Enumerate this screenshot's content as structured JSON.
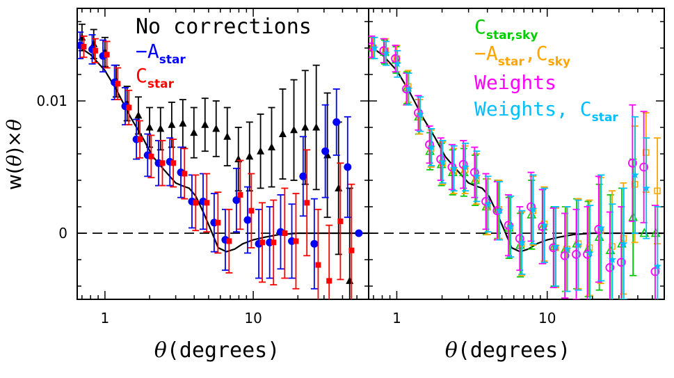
{
  "figure": {
    "ylabel_prefix": "w(",
    "ylabel_theta": "θ",
    "ylabel_mid": ")×",
    "ylabel_theta2": "θ",
    "xlabel_theta": "θ",
    "xlabel_rest": "(degrees)"
  },
  "colors": {
    "black": "#000000",
    "blue": "#0000ff",
    "red": "#ff0000",
    "green": "#00cc00",
    "orange": "#ffa500",
    "magenta": "#ff00ff",
    "cyan": "#00bfff"
  },
  "chart_data": [
    {
      "type": "scatter",
      "panel": "left",
      "xscale": "log",
      "xlim": [
        0.65,
        60
      ],
      "ylim": [
        -0.005,
        0.017
      ],
      "xticks": [
        1,
        10
      ],
      "xtick_labels": [
        "1",
        "10"
      ],
      "yticks": [
        0,
        0.01
      ],
      "ytick_labels": [
        "0",
        "0.01"
      ],
      "hline": 0,
      "legend": [
        {
          "text": "No corrections",
          "color": "#000000"
        },
        {
          "text": "−A",
          "sub": "star",
          "color": "#0000ff"
        },
        {
          "text": "C",
          "sub": "star",
          "color": "#ff0000"
        }
      ],
      "model": {
        "x": [
          0.65,
          0.8,
          1.0,
          1.2,
          1.5,
          1.8,
          2.1,
          2.5,
          3.0,
          3.3,
          3.7,
          4.1,
          4.6,
          5.2,
          5.8,
          6.6,
          7.5,
          8.5,
          10,
          12,
          15,
          20,
          30,
          45,
          60
        ],
        "y": [
          0.0142,
          0.0135,
          0.0123,
          0.0108,
          0.0087,
          0.0072,
          0.0058,
          0.0048,
          0.0038,
          0.0036,
          0.0034,
          0.0028,
          0.0016,
          0.0002,
          -0.0011,
          -0.0014,
          -0.0012,
          -0.0008,
          -0.0005,
          -0.0003,
          -0.0001,
          0.0,
          0.0,
          0.0,
          0.0
        ]
      },
      "series": [
        {
          "marker": "triangle",
          "color": "#000000",
          "x": [
            0.7,
            0.84,
            1.0,
            1.19,
            1.41,
            1.68,
            2.0,
            2.37,
            2.82,
            3.35,
            3.98,
            4.73,
            5.62,
            6.68,
            7.94,
            9.44,
            11.2,
            13.3,
            15.8,
            18.8,
            22.4,
            26.6,
            31.6,
            37.6,
            44.7
          ],
          "y": [
            0.0148,
            0.0143,
            0.0137,
            0.0115,
            0.0098,
            0.0089,
            0.008,
            0.0079,
            0.0082,
            0.0083,
            0.0076,
            0.0082,
            0.0079,
            0.0073,
            0.0056,
            0.0058,
            0.0062,
            0.0065,
            0.0075,
            0.0078,
            0.008,
            0.008,
            0.0059,
            0.0034,
            -0.0036
          ],
          "err": [
            0.001,
            0.0011,
            0.0011,
            0.0012,
            0.0013,
            0.0014,
            0.0015,
            0.0016,
            0.0017,
            0.0018,
            0.0019,
            0.002,
            0.0021,
            0.0022,
            0.0024,
            0.0026,
            0.0028,
            0.003,
            0.0034,
            0.0038,
            0.0043,
            0.0047,
            0.0047,
            0.005,
            0.007
          ]
        },
        {
          "marker": "circle",
          "color": "#0000ff",
          "x": [
            0.68,
            0.82,
            0.97,
            1.16,
            1.37,
            1.63,
            1.94,
            2.3,
            2.74,
            3.25,
            3.86,
            4.59,
            5.45,
            6.48,
            7.7,
            9.16,
            10.9,
            12.9,
            15.3,
            18.2,
            21.7,
            25.8,
            30.6,
            36.4,
            43.3,
            51.5
          ],
          "y": [
            0.0142,
            0.0139,
            0.0134,
            0.0114,
            0.0096,
            0.0071,
            0.0059,
            0.0053,
            0.0054,
            0.0046,
            0.0024,
            0.0024,
            0.0008,
            -0.0005,
            0.0025,
            0.001,
            -0.0008,
            -0.0007,
            0.0001,
            -0.0006,
            0.0043,
            -0.0008,
            0.0062,
            0.0084,
            0.005,
            0.0
          ],
          "err": [
            0.001,
            0.0011,
            0.0012,
            0.0013,
            0.0014,
            0.0015,
            0.0016,
            0.0017,
            0.0018,
            0.0019,
            0.002,
            0.0021,
            0.0022,
            0.0023,
            0.0024,
            0.0025,
            0.0026,
            0.0027,
            0.0028,
            0.0028,
            0.003,
            0.0034,
            0.0035,
            0.0025,
            0.0038,
            0.0
          ]
        },
        {
          "marker": "square",
          "color": "#ff0000",
          "x": [
            0.72,
            0.86,
            1.03,
            1.22,
            1.45,
            1.72,
            2.05,
            2.44,
            2.89,
            3.44,
            4.09,
            4.86,
            5.78,
            6.87,
            8.17,
            9.71,
            11.5,
            13.7,
            16.3,
            19.4,
            23.0,
            27.4,
            32.5,
            38.7,
            46.0
          ],
          "y": [
            0.0141,
            0.0138,
            0.0135,
            0.0113,
            0.0095,
            0.0071,
            0.0058,
            0.0053,
            0.0053,
            0.0045,
            0.0023,
            0.0023,
            0.0008,
            -0.0006,
            0.0029,
            0.0017,
            -0.0007,
            -0.0007,
            0.0,
            -0.0006,
            0.0023,
            -0.0024,
            -0.0036,
            0.0009,
            -0.0013
          ],
          "err": [
            0.0008,
            0.0009,
            0.001,
            0.0012,
            0.0013,
            0.0014,
            0.0016,
            0.0017,
            0.0018,
            0.0019,
            0.0021,
            0.0022,
            0.0023,
            0.0024,
            0.0026,
            0.0028,
            0.003,
            0.0032,
            0.0034,
            0.0036,
            0.004,
            0.0042,
            0.0042,
            0.0044,
            0.005
          ]
        }
      ]
    },
    {
      "type": "scatter",
      "panel": "right",
      "xscale": "log",
      "xlim": [
        0.65,
        60
      ],
      "ylim": [
        -0.005,
        0.017
      ],
      "xticks": [
        1,
        10
      ],
      "xtick_labels": [
        "1",
        "10"
      ],
      "yticks": [
        0,
        0.01
      ],
      "hline": 0,
      "legend": [
        {
          "text": "C",
          "sub": "star,sky",
          "color": "#00cc00"
        },
        {
          "text": "−A",
          "sub": "star",
          "text2": ",C",
          "sub2": "sky",
          "color": "#ffa500"
        },
        {
          "text": "Weights",
          "color": "#ff00ff"
        },
        {
          "text": "Weights, C",
          "sub": "star",
          "color": "#00bfff"
        }
      ],
      "model": {
        "x": [
          0.65,
          0.8,
          1.0,
          1.2,
          1.5,
          1.8,
          2.1,
          2.5,
          3.0,
          3.3,
          3.7,
          4.1,
          4.6,
          5.2,
          5.8,
          6.6,
          7.5,
          8.5,
          10,
          12,
          15,
          20,
          30,
          45,
          60
        ],
        "y": [
          0.0142,
          0.0135,
          0.0123,
          0.0108,
          0.0087,
          0.0072,
          0.0058,
          0.0048,
          0.0038,
          0.0036,
          0.0034,
          0.0028,
          0.0016,
          0.0002,
          -0.0011,
          -0.0014,
          -0.0012,
          -0.0008,
          -0.0005,
          -0.0003,
          -0.0001,
          0.0,
          0.0,
          0.0,
          0.0
        ]
      },
      "series": [
        {
          "marker": "triangle-open",
          "color": "#00cc00",
          "x": [
            0.69,
            0.83,
            0.99,
            1.17,
            1.4,
            1.66,
            1.98,
            2.35,
            2.79,
            3.32,
            3.94,
            4.69,
            5.57,
            6.62,
            7.87,
            9.35,
            11.1,
            13.2,
            15.7,
            18.7,
            22.2,
            26.3,
            31.3,
            37.2,
            44.2,
            52.6
          ],
          "y": [
            0.014,
            0.0137,
            0.0131,
            0.011,
            0.0088,
            0.0062,
            0.0052,
            0.0046,
            0.0046,
            0.004,
            0.002,
            0.0018,
            0.0004,
            -0.0009,
            0.0014,
            0.0005,
            -0.001,
            -0.0012,
            -0.0008,
            -0.0012,
            -0.0003,
            -0.0013,
            -0.0008,
            0.0012,
            0.0,
            0.0
          ],
          "err": [
            0.0008,
            0.0009,
            0.001,
            0.0012,
            0.0013,
            0.0014,
            0.0016,
            0.0017,
            0.0018,
            0.0019,
            0.0021,
            0.0022,
            0.0023,
            0.0024,
            0.0026,
            0.0028,
            0.003,
            0.0032,
            0.0034,
            0.0036,
            0.004,
            0.0042,
            0.0042,
            0.0044,
            0.0,
            0.0
          ]
        },
        {
          "marker": "square-open",
          "color": "#ffa500",
          "x": [
            0.7,
            0.84,
            1.0,
            1.19,
            1.42,
            1.69,
            2.01,
            2.39,
            2.84,
            3.38,
            4.02,
            4.78,
            5.68,
            6.75,
            8.03,
            9.55,
            11.4,
            13.5,
            16.1,
            19.1,
            22.7,
            27.0,
            32.1,
            38.2,
            45.4,
            54.0
          ],
          "y": [
            0.014,
            0.0138,
            0.0132,
            0.0111,
            0.0088,
            0.0064,
            0.0053,
            0.0047,
            0.0048,
            0.0041,
            0.002,
            0.0018,
            0.0005,
            -0.0008,
            0.0017,
            0.0007,
            -0.0011,
            -0.0012,
            -0.0008,
            -0.0011,
            0.0002,
            -0.001,
            -0.0004,
            0.0037,
            0.0061,
            0.0032
          ],
          "err": [
            0.0008,
            0.0009,
            0.001,
            0.0012,
            0.0013,
            0.0014,
            0.0016,
            0.0017,
            0.0018,
            0.0019,
            0.0021,
            0.0022,
            0.0023,
            0.0024,
            0.0026,
            0.0028,
            0.003,
            0.0032,
            0.0034,
            0.0036,
            0.004,
            0.0042,
            0.0042,
            0.0044,
            0.003,
            0.004
          ]
        },
        {
          "marker": "circle-open",
          "color": "#ff00ff",
          "x": [
            0.68,
            0.82,
            0.98,
            1.16,
            1.39,
            1.65,
            1.96,
            2.33,
            2.77,
            3.29,
            3.91,
            4.65,
            5.53,
            6.57,
            7.81,
            9.28,
            11.0,
            13.1,
            15.6,
            18.5,
            22.0,
            26.1,
            31.1,
            36.9,
            43.9,
            52.2
          ],
          "y": [
            0.0141,
            0.0138,
            0.0132,
            0.0109,
            0.0091,
            0.0067,
            0.0056,
            0.005,
            0.0052,
            0.0046,
            0.0024,
            0.0017,
            0.0006,
            -0.0004,
            0.002,
            0.0005,
            -0.0011,
            -0.0017,
            -0.0016,
            -0.0016,
            0.0003,
            -0.0026,
            -0.0022,
            0.0053,
            0.005,
            -0.0029
          ],
          "err": [
            0.0008,
            0.0009,
            0.001,
            0.0012,
            0.0013,
            0.0014,
            0.0016,
            0.0017,
            0.0018,
            0.0019,
            0.0021,
            0.0022,
            0.0023,
            0.0024,
            0.0026,
            0.0028,
            0.003,
            0.0032,
            0.0034,
            0.0036,
            0.004,
            0.0042,
            0.0042,
            0.0044,
            0.0042,
            0.005
          ]
        },
        {
          "marker": "star",
          "color": "#00bfff",
          "x": [
            0.71,
            0.85,
            1.01,
            1.2,
            1.43,
            1.7,
            2.02,
            2.4,
            2.86,
            3.4,
            4.04,
            4.81,
            5.71,
            6.79,
            8.07,
            9.6,
            11.4,
            13.6,
            16.1,
            19.2,
            22.8,
            27.1,
            32.3,
            38.4,
            45.6,
            54.2
          ],
          "y": [
            0.014,
            0.0136,
            0.0128,
            0.0109,
            0.009,
            0.0065,
            0.0054,
            0.0049,
            0.005,
            0.0043,
            0.0022,
            0.0017,
            0.0005,
            -0.0007,
            0.0018,
            0.0006,
            -0.001,
            -0.0012,
            -0.0009,
            -0.0015,
            0.0004,
            -0.002,
            -0.0008,
            0.0044,
            0.0034,
            -0.0025
          ],
          "err": [
            0.0008,
            0.0009,
            0.001,
            0.0012,
            0.0013,
            0.0014,
            0.0016,
            0.0017,
            0.0018,
            0.0019,
            0.0021,
            0.0022,
            0.0023,
            0.0024,
            0.0026,
            0.0028,
            0.003,
            0.0032,
            0.0034,
            0.0036,
            0.004,
            0.0042,
            0.0042,
            0.0044,
            0.0038,
            0.0045
          ]
        }
      ]
    }
  ]
}
